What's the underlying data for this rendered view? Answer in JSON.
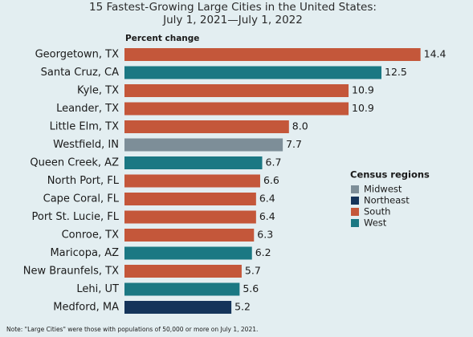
{
  "chart_data": {
    "type": "bar",
    "orientation": "horizontal",
    "title_lines": [
      "15 Fastest-Growing Large Cities in the United States:",
      "July 1, 2021—July 1, 2022"
    ],
    "x_label": "Percent change",
    "categories": [
      "Georgetown, TX",
      "Santa Cruz, CA",
      "Kyle, TX",
      "Leander, TX",
      "Little Elm, TX",
      "Westfield, IN",
      "Queen Creek, AZ",
      "North Port, FL",
      "Cape Coral, FL",
      "Port St. Lucie, FL",
      "Conroe, TX",
      "Maricopa, AZ",
      "New Braunfels, TX",
      "Lehi, UT",
      "Medford, MA"
    ],
    "values": [
      14.4,
      12.5,
      10.9,
      10.9,
      8.0,
      7.7,
      6.7,
      6.6,
      6.4,
      6.4,
      6.3,
      6.2,
      5.7,
      5.6,
      5.2
    ],
    "value_labels": [
      "14.4",
      "12.5",
      "10.9",
      "10.9",
      "8.0",
      "7.7",
      "6.7",
      "6.6",
      "6.4",
      "6.4",
      "6.3",
      "6.2",
      "5.7",
      "5.6",
      "5.2"
    ],
    "colors": [
      "#c4573a",
      "#1b7883",
      "#c4573a",
      "#c4573a",
      "#c4573a",
      "#7d8e98",
      "#1b7883",
      "#c4573a",
      "#c4573a",
      "#c4573a",
      "#c4573a",
      "#1b7883",
      "#c4573a",
      "#1b7883",
      "#15345a"
    ],
    "xlim": [
      0,
      15
    ],
    "legend": {
      "title": "Census regions",
      "items": [
        {
          "name": "Midwest",
          "color": "#7d8e98"
        },
        {
          "name": "Northeast",
          "color": "#15345a"
        },
        {
          "name": "South",
          "color": "#c4573a"
        },
        {
          "name": "West",
          "color": "#1b7883"
        }
      ]
    },
    "note": "Note: \"Large Cities\" were those with populations of 50,000 or more on July 1, 2021."
  }
}
